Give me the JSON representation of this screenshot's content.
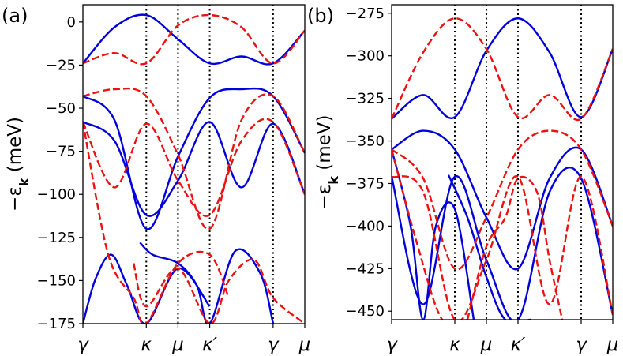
{
  "chart_data": [
    {
      "type": "line",
      "panel_label": "(a)",
      "ylabel": "−ε_k (meV)",
      "ylabel_main": "−ε",
      "ylabel_sub": "k",
      "ylabel_units": " (meV)",
      "ylim": [
        -175,
        10
      ],
      "yticks": [
        0,
        -25,
        -50,
        -75,
        -100,
        -125,
        -150,
        -175
      ],
      "ytick_labels": [
        "0",
        "−25",
        "−50",
        "−75",
        "−100",
        "−125",
        "−150",
        "−175"
      ],
      "xlim": [
        0,
        3.5
      ],
      "xticks": [
        0,
        1,
        1.5,
        2,
        3,
        3.5
      ],
      "xtick_labels": [
        "γ",
        "κ",
        "μ",
        "κ′",
        "γ",
        "μ"
      ],
      "vlines": [
        1,
        1.5,
        2,
        3
      ],
      "legend": "none",
      "series": [
        {
          "name": "blue-band-1",
          "style": "solid",
          "color": "#0000dd",
          "x": [
            0,
            0.5,
            1,
            1.5,
            2,
            2.5,
            3,
            3.5
          ],
          "y": [
            -24,
            -3,
            4,
            -10,
            -24,
            -20,
            -24,
            -5
          ]
        },
        {
          "name": "blue-band-2",
          "style": "solid",
          "color": "#0000dd",
          "x": [
            0,
            0.5,
            1,
            1.5,
            2,
            2.5,
            3,
            3.5
          ],
          "y": [
            -43,
            -57,
            -120,
            -78,
            -44,
            -39,
            -43,
            -76
          ]
        },
        {
          "name": "blue-band-3",
          "style": "solid",
          "color": "#0000dd",
          "x": [
            0,
            0.5,
            1,
            1.5,
            2,
            2.5,
            3,
            3.5
          ],
          "y": [
            -58,
            -69,
            -112,
            -92,
            -58,
            -96,
            -59,
            -100
          ]
        },
        {
          "name": "blue-band-4",
          "style": "solid",
          "color": "#0000dd",
          "x": [
            0,
            0.2,
            0.45,
            0.7,
            1,
            1.5,
            2
          ],
          "y": [
            -175,
            -149,
            -135,
            -153,
            -175,
            -143,
            -165
          ]
        },
        {
          "name": "blue-band-5",
          "style": "solid",
          "color": "#0000dd",
          "x": [
            0.9,
            1.1,
            1.5,
            1.8,
            2,
            2.4,
            2.8,
            3
          ],
          "y": [
            -128,
            -135,
            -140,
            -153,
            -175,
            -133,
            -146,
            -175
          ]
        },
        {
          "name": "red-band-1",
          "style": "dashed",
          "color": "#ee1111",
          "x": [
            0,
            0.5,
            1,
            1.5,
            2,
            2.5,
            3,
            3.5
          ],
          "y": [
            -24,
            -18,
            -24,
            -2,
            4,
            -3,
            -24,
            -5
          ]
        },
        {
          "name": "red-band-2",
          "style": "dashed",
          "color": "#ee1111",
          "x": [
            0,
            0.5,
            1,
            1.5,
            2,
            2.5,
            3,
            3.5
          ],
          "y": [
            -43,
            -39,
            -43,
            -77,
            -120,
            -57,
            -43,
            -76
          ]
        },
        {
          "name": "red-band-3",
          "style": "dashed",
          "color": "#ee1111",
          "x": [
            0,
            0.5,
            1,
            1.5,
            2,
            2.5,
            3,
            3.5
          ],
          "y": [
            -58,
            -96,
            -59,
            -92,
            -112,
            -69,
            -58,
            -100
          ]
        },
        {
          "name": "red-band-4",
          "style": "dashed",
          "color": "#ee1111",
          "x": [
            0,
            0.4,
            0.8,
            1,
            1.5,
            2,
            2.3
          ],
          "y": [
            -58,
            -135,
            -160,
            -175,
            -140,
            -135,
            -160
          ]
        },
        {
          "name": "red-band-5",
          "style": "dashed",
          "color": "#ee1111",
          "x": [
            0.8,
            1,
            1.5,
            2,
            2.3,
            2.7,
            3,
            3.5
          ],
          "y": [
            -140,
            -165,
            -143,
            -175,
            -150,
            -138,
            -160,
            -175
          ]
        }
      ]
    },
    {
      "type": "line",
      "panel_label": "(b)",
      "ylabel": "−ε_k (meV)",
      "ylabel_main": "−ε",
      "ylabel_sub": "k",
      "ylabel_units": " (meV)",
      "ylim": [
        -455,
        -270
      ],
      "yticks": [
        -275,
        -300,
        -325,
        -350,
        -375,
        -400,
        -425,
        -450
      ],
      "ytick_labels": [
        "−275",
        "−300",
        "−325",
        "−350",
        "−375",
        "−400",
        "−425",
        "−450"
      ],
      "xlim": [
        0,
        3.5
      ],
      "xticks": [
        0,
        1,
        1.5,
        2,
        3,
        3.5
      ],
      "xtick_labels": [
        "γ",
        "κ",
        "μ",
        "κ′",
        "γ",
        "μ"
      ],
      "vlines": [
        1,
        1.5,
        2,
        3
      ],
      "legend": "none",
      "series": [
        {
          "name": "blue-band-1",
          "style": "solid",
          "color": "#0000dd",
          "x": [
            0,
            0.5,
            1,
            1.5,
            2,
            2.5,
            3,
            3.5
          ],
          "y": [
            -337,
            -323,
            -336,
            -297,
            -278,
            -298,
            -336,
            -296
          ]
        },
        {
          "name": "blue-band-2",
          "style": "solid",
          "color": "#0000dd",
          "x": [
            0,
            0.5,
            1,
            1.5,
            2,
            2.5,
            3,
            3.5
          ],
          "y": [
            -355,
            -344,
            -355,
            -395,
            -425,
            -372,
            -355,
            -400
          ]
        },
        {
          "name": "blue-band-3",
          "style": "solid",
          "color": "#0000dd",
          "x": [
            0,
            0.5,
            1,
            1.5,
            2,
            2.5,
            3,
            3.5
          ],
          "y": [
            -371,
            -446,
            -371,
            -420,
            -455,
            -380,
            -372,
            -452
          ]
        },
        {
          "name": "blue-band-4",
          "style": "solid",
          "color": "#0000dd",
          "x": [
            0,
            0.3,
            0.5,
            0.7,
            1,
            1.3
          ],
          "y": [
            -355,
            -400,
            -455,
            -400,
            -390,
            -455
          ]
        },
        {
          "name": "blue-band-5",
          "style": "solid",
          "color": "#0000dd",
          "x": [
            0.9,
            1.2,
            1.5,
            1.8,
            2.2
          ],
          "y": [
            -370,
            -395,
            -430,
            -455,
            -455
          ]
        },
        {
          "name": "red-band-1",
          "style": "dashed",
          "color": "#ee1111",
          "x": [
            0,
            0.5,
            1,
            1.5,
            2,
            2.5,
            3,
            3.5
          ],
          "y": [
            -337,
            -298,
            -278,
            -296,
            -336,
            -323,
            -337,
            -296
          ]
        },
        {
          "name": "red-band-2",
          "style": "dashed",
          "color": "#ee1111",
          "x": [
            0,
            0.5,
            1,
            1.5,
            2,
            2.5,
            3,
            3.5
          ],
          "y": [
            -355,
            -372,
            -425,
            -395,
            -355,
            -344,
            -355,
            -400
          ]
        },
        {
          "name": "red-band-3",
          "style": "dashed",
          "color": "#ee1111",
          "x": [
            0,
            0.5,
            1,
            1.5,
            2,
            2.5,
            3,
            3.5
          ],
          "y": [
            -371,
            -380,
            -455,
            -420,
            -371,
            -446,
            -371,
            -452
          ]
        },
        {
          "name": "red-band-4",
          "style": "dashed",
          "color": "#ee1111",
          "x": [
            0,
            0.4,
            0.8,
            1.2
          ],
          "y": [
            -355,
            -410,
            -455,
            -455
          ]
        },
        {
          "name": "red-band-5",
          "style": "dashed",
          "color": "#ee1111",
          "x": [
            1.2,
            1.5,
            1.8,
            2,
            2.3,
            2.5,
            2.7
          ],
          "y": [
            -455,
            -412,
            -395,
            -372,
            -380,
            -420,
            -455
          ]
        }
      ]
    }
  ]
}
